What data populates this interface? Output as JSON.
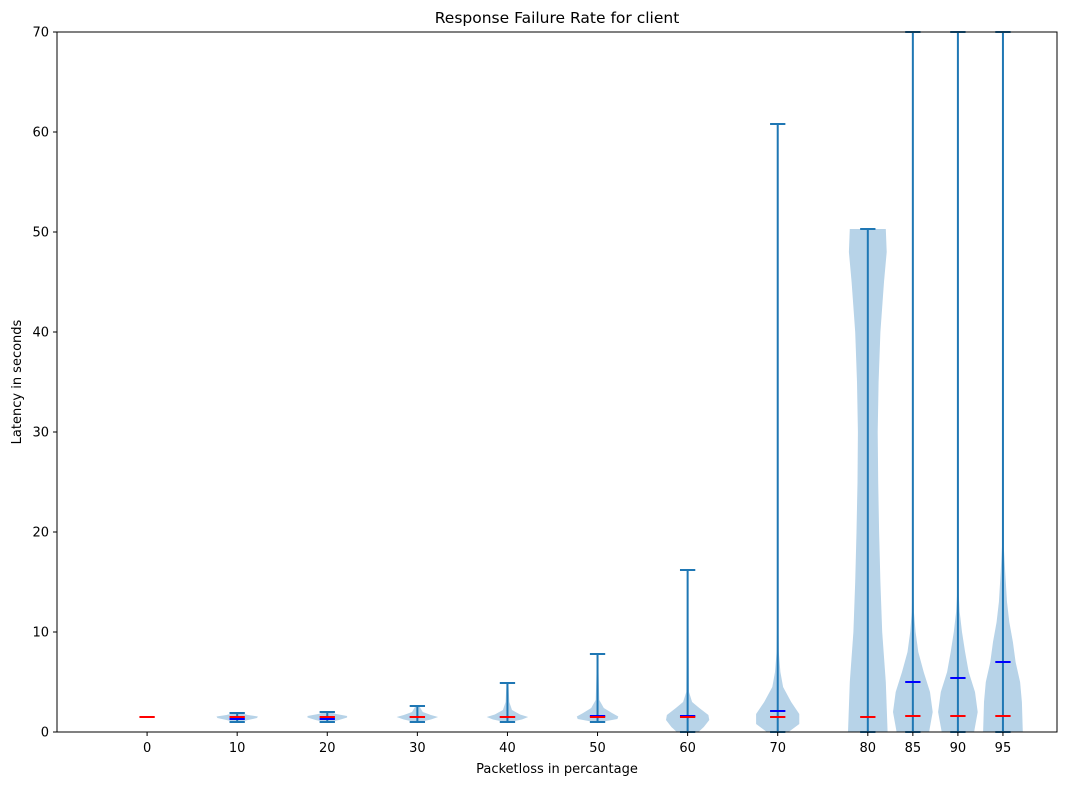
{
  "chart_data": {
    "type": "violin",
    "title": "Response Failure Rate for client",
    "xlabel": "Packetloss in percantage",
    "ylabel": "Latency in seconds",
    "ylim": [
      0,
      70
    ],
    "yticks": [
      0,
      10,
      20,
      30,
      40,
      50,
      60,
      70
    ],
    "xlim": [
      -10,
      101
    ],
    "grid": false,
    "colors": {
      "violin_fill": "#b7d3e8",
      "whisker": "#1f77b4",
      "median": "#ff0000",
      "mean": "#0000ff"
    },
    "violins": [
      {
        "x": 0,
        "label": "0",
        "min": 1.5,
        "max": 1.5,
        "median": 1.5,
        "mean": null,
        "shape": [
          [
            1.5,
            0.0
          ]
        ]
      },
      {
        "x": 10,
        "label": "10",
        "min": 1.0,
        "max": 1.9,
        "median": 1.5,
        "mean": 1.3,
        "shape": [
          [
            1.0,
            0.3
          ],
          [
            1.2,
            1.2
          ],
          [
            1.4,
            2.2
          ],
          [
            1.55,
            2.3
          ],
          [
            1.7,
            1.2
          ],
          [
            1.9,
            0.3
          ]
        ]
      },
      {
        "x": 20,
        "label": "20",
        "min": 1.0,
        "max": 2.0,
        "median": 1.5,
        "mean": 1.3,
        "shape": [
          [
            1.0,
            0.3
          ],
          [
            1.2,
            1.3
          ],
          [
            1.45,
            2.2
          ],
          [
            1.6,
            2.2
          ],
          [
            1.8,
            1.0
          ],
          [
            2.0,
            0.3
          ]
        ]
      },
      {
        "x": 30,
        "label": "30",
        "min": 1.0,
        "max": 2.6,
        "median": 1.5,
        "mean": 1.5,
        "shape": [
          [
            1.0,
            0.3
          ],
          [
            1.25,
            1.5
          ],
          [
            1.5,
            2.3
          ],
          [
            1.7,
            1.5
          ],
          [
            2.0,
            0.6
          ],
          [
            2.6,
            0.2
          ]
        ]
      },
      {
        "x": 40,
        "label": "40",
        "min": 1.0,
        "max": 4.9,
        "median": 1.5,
        "mean": 1.5,
        "shape": [
          [
            1.0,
            0.3
          ],
          [
            1.25,
            1.6
          ],
          [
            1.5,
            2.3
          ],
          [
            1.75,
            1.4
          ],
          [
            2.2,
            0.5
          ],
          [
            3.0,
            0.2
          ],
          [
            4.9,
            0.1
          ]
        ]
      },
      {
        "x": 50,
        "label": "50",
        "min": 1.0,
        "max": 7.8,
        "median": 1.5,
        "mean": 1.6,
        "shape": [
          [
            1.0,
            0.4
          ],
          [
            1.3,
            2.2
          ],
          [
            1.55,
            2.3
          ],
          [
            1.9,
            1.6
          ],
          [
            2.4,
            0.7
          ],
          [
            3.2,
            0.2
          ],
          [
            7.8,
            0.05
          ]
        ]
      },
      {
        "x": 60,
        "label": "60",
        "min": 0.0,
        "max": 16.2,
        "median": 1.5,
        "mean": 1.6,
        "shape": [
          [
            0.0,
            1.2
          ],
          [
            0.5,
            1.8
          ],
          [
            1.2,
            2.4
          ],
          [
            1.7,
            2.3
          ],
          [
            2.4,
            1.3
          ],
          [
            3.0,
            0.5
          ],
          [
            4.0,
            0.15
          ],
          [
            16.2,
            0.05
          ]
        ]
      },
      {
        "x": 70,
        "label": "70",
        "min": 0.0,
        "max": 60.8,
        "median": 1.5,
        "mean": 2.1,
        "shape": [
          [
            0.0,
            1.2
          ],
          [
            0.8,
            2.4
          ],
          [
            1.8,
            2.4
          ],
          [
            3.0,
            1.5
          ],
          [
            4.5,
            0.6
          ],
          [
            6.0,
            0.3
          ],
          [
            8.0,
            0.12
          ],
          [
            12.0,
            0.05
          ],
          [
            60.8,
            0.03
          ]
        ]
      },
      {
        "x": 80,
        "label": "80",
        "min": 0.0,
        "max": 50.3,
        "median": 1.5,
        "mean": null,
        "shape": [
          [
            0.0,
            2.2
          ],
          [
            5.0,
            2.0
          ],
          [
            10.0,
            1.6
          ],
          [
            15.0,
            1.4
          ],
          [
            20.0,
            1.25
          ],
          [
            25.0,
            1.15
          ],
          [
            30.0,
            1.1
          ],
          [
            35.0,
            1.2
          ],
          [
            40.0,
            1.4
          ],
          [
            45.0,
            1.8
          ],
          [
            48.0,
            2.1
          ],
          [
            50.3,
            2.0
          ]
        ]
      },
      {
        "x": 85,
        "label": "85",
        "min": 0.0,
        "max": 70.0,
        "median": 1.6,
        "mean": 5.0,
        "shape": [
          [
            0.0,
            1.8
          ],
          [
            2.0,
            2.2
          ],
          [
            4.0,
            1.9
          ],
          [
            6.0,
            1.2
          ],
          [
            8.0,
            0.6
          ],
          [
            10.0,
            0.3
          ],
          [
            12.0,
            0.12
          ],
          [
            15.0,
            0.05
          ],
          [
            70.0,
            0.02
          ]
        ]
      },
      {
        "x": 90,
        "label": "90",
        "min": 0.0,
        "max": 70.0,
        "median": 1.6,
        "mean": 5.4,
        "shape": [
          [
            0.0,
            1.8
          ],
          [
            2.0,
            2.2
          ],
          [
            4.0,
            1.9
          ],
          [
            6.0,
            1.2
          ],
          [
            8.0,
            0.8
          ],
          [
            10.0,
            0.45
          ],
          [
            12.0,
            0.2
          ],
          [
            14.0,
            0.08
          ],
          [
            20.0,
            0.03
          ],
          [
            70.0,
            0.02
          ]
        ]
      },
      {
        "x": 95,
        "label": "95",
        "min": 0.0,
        "max": 70.0,
        "median": 1.6,
        "mean": 7.0,
        "shape": [
          [
            0.0,
            2.2
          ],
          [
            3.0,
            2.1
          ],
          [
            5.0,
            1.9
          ],
          [
            7.0,
            1.4
          ],
          [
            9.0,
            1.1
          ],
          [
            11.0,
            0.7
          ],
          [
            13.0,
            0.45
          ],
          [
            16.0,
            0.25
          ],
          [
            18.5,
            0.1
          ],
          [
            25.0,
            0.03
          ],
          [
            70.0,
            0.02
          ]
        ]
      }
    ]
  }
}
